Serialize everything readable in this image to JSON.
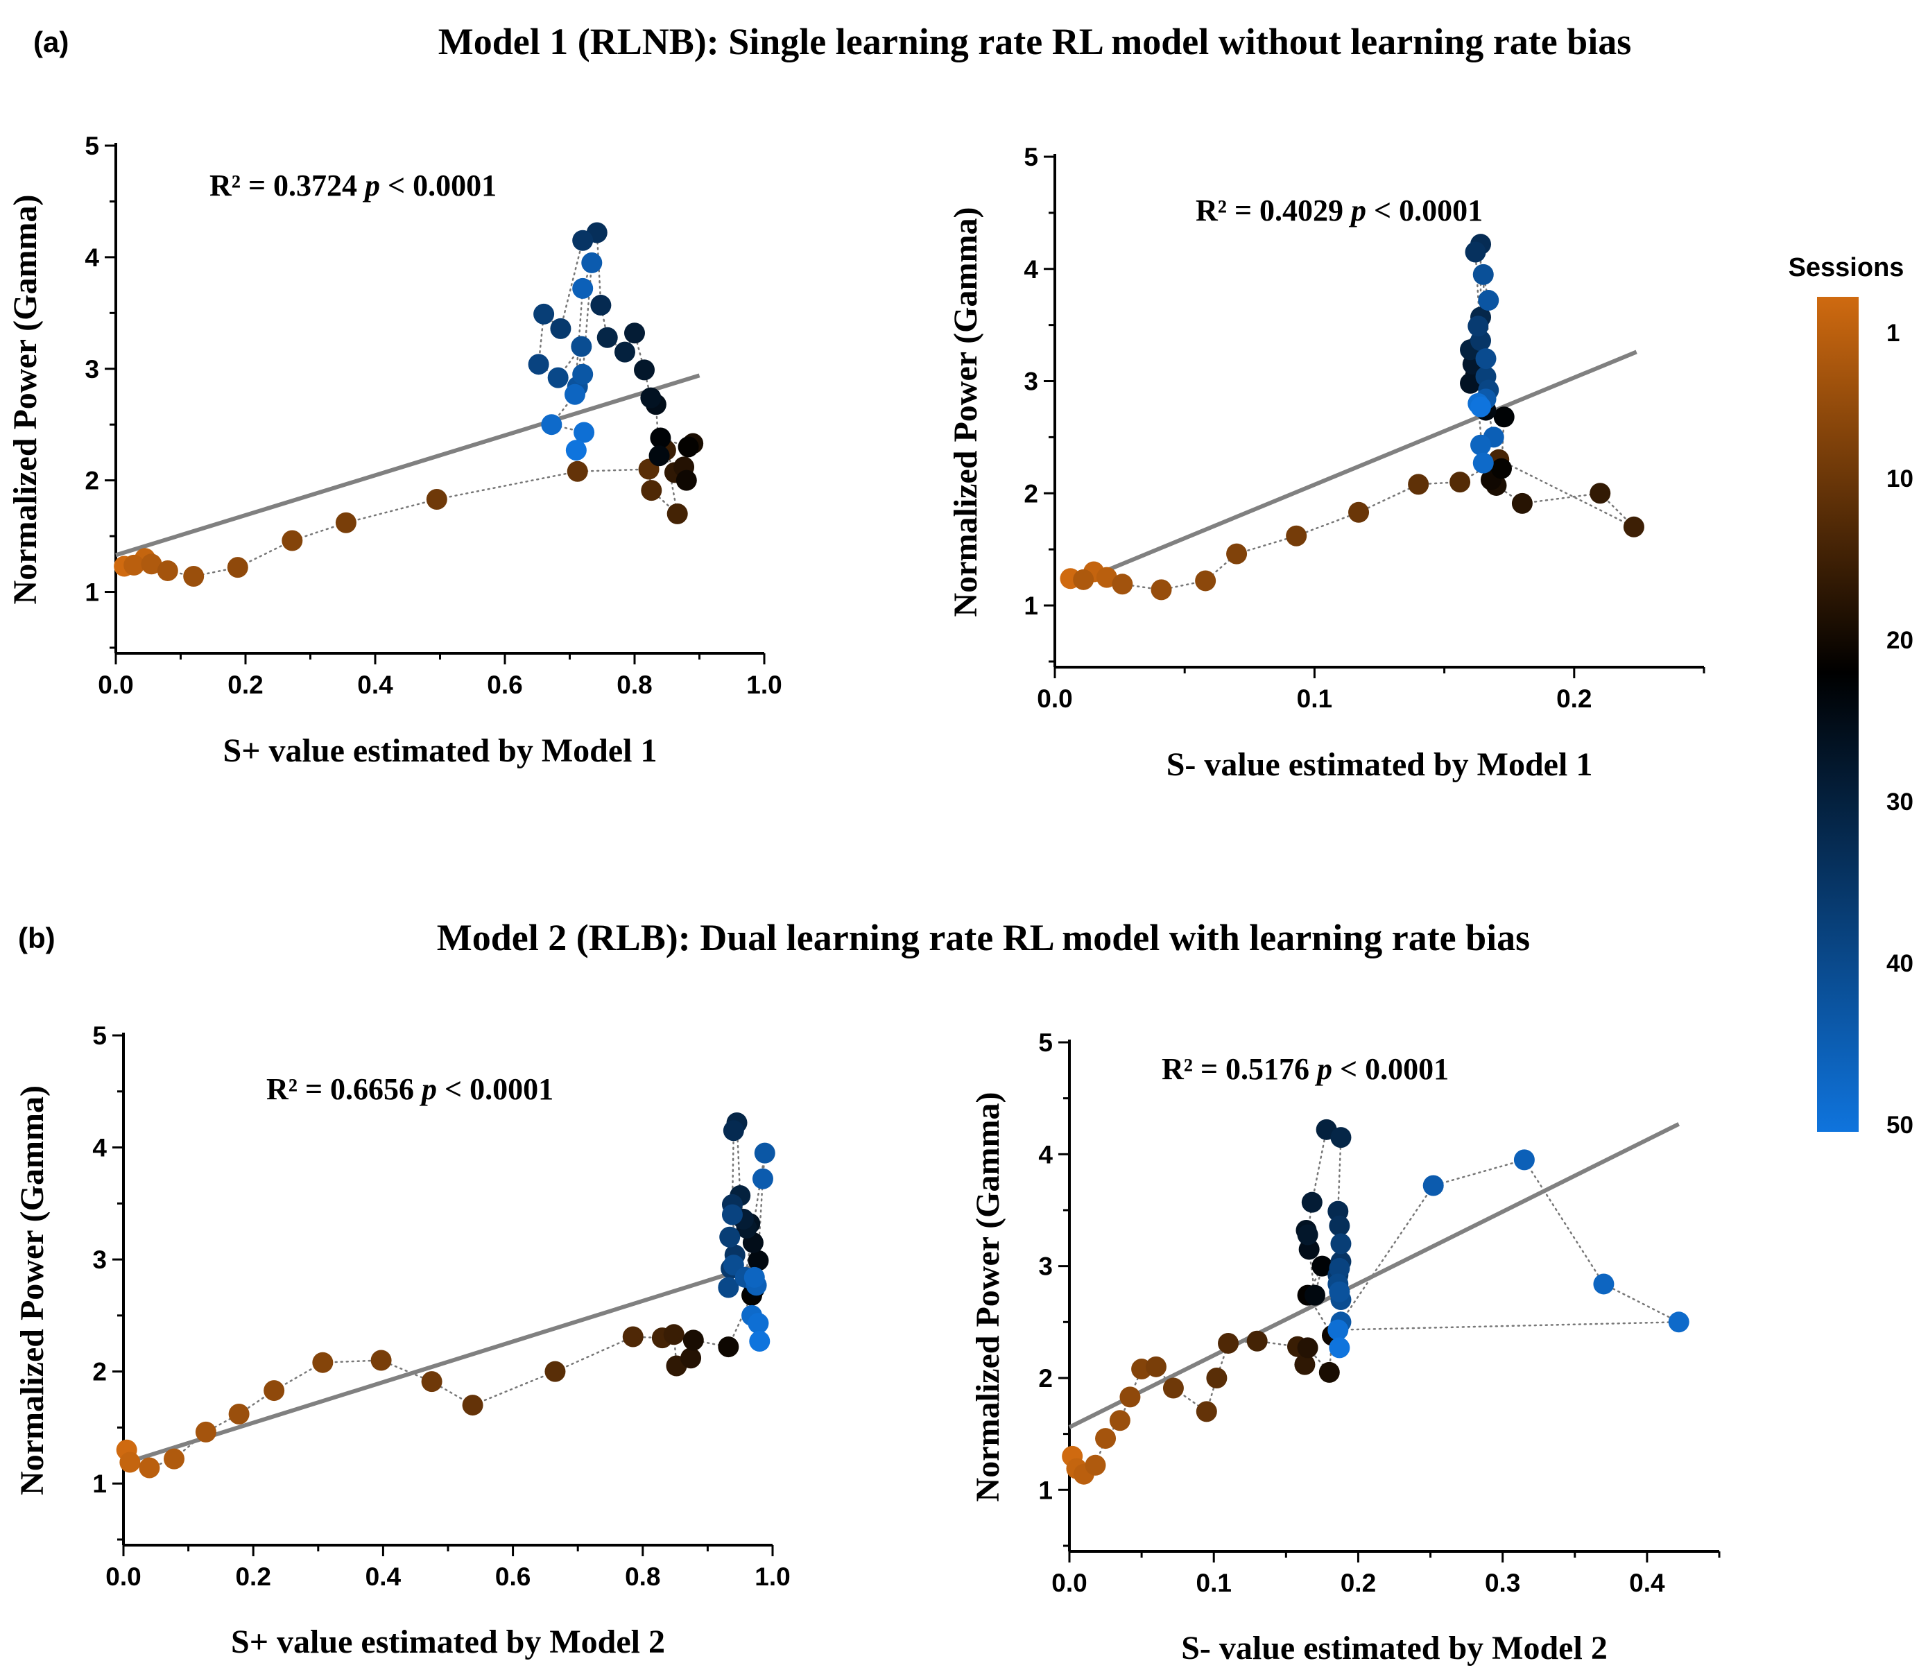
{
  "row_titles": [
    {
      "letter": "(a)",
      "title": "Model 1 (RLNB):  Single learning rate RL model without learning rate bias"
    },
    {
      "letter": "(b)",
      "title": "Model 2 (RLB):  Dual learning rate RL model with learning rate bias"
    }
  ],
  "colorbar": {
    "title": "Sessions",
    "ticks": [
      1,
      10,
      20,
      30,
      40,
      50
    ],
    "colors": [
      "#cf6a10",
      "#000000",
      "#0f74dd"
    ]
  },
  "colors": {
    "fit_line": "#808080",
    "path": "#777777",
    "axis": "#000000"
  },
  "chart_data": [
    {
      "type": "scatter",
      "ylabel": "Normalized Power (Gamma)",
      "xlabel": "S+ value estimated by Model 1",
      "xlim": [
        0,
        1.0
      ],
      "ylim": [
        0.45,
        5
      ],
      "xticks": [
        "0.0",
        "0.2",
        "0.4",
        "0.6",
        "0.8",
        "1.0"
      ],
      "xtick_values": [
        0,
        0.2,
        0.4,
        0.6,
        0.8,
        1.0
      ],
      "yticks": [
        "1",
        "2",
        "3",
        "4",
        "5"
      ],
      "ytick_values": [
        1,
        2,
        3,
        4,
        5
      ],
      "r2_text": "R² = 0.3724",
      "p_label": "p",
      "p_text": "< 0.0001",
      "fit": {
        "x0": 0.0,
        "y0": 1.33,
        "x1": 0.9,
        "y1": 2.94
      },
      "x": [
        0.013,
        0.045,
        0.028,
        0.055,
        0.08,
        0.12,
        0.188,
        0.272,
        0.355,
        0.495,
        0.712,
        0.822,
        0.826,
        0.866,
        0.848,
        0.862,
        0.876,
        0.89,
        0.88,
        0.883,
        0.84,
        0.838,
        0.833,
        0.825,
        0.815,
        0.8,
        0.785,
        0.758,
        0.748,
        0.742,
        0.72,
        0.686,
        0.66,
        0.652,
        0.682,
        0.718,
        0.712,
        0.72,
        0.734,
        0.72,
        0.708,
        0.672,
        0.722,
        0.71
      ],
      "y": [
        1.23,
        1.3,
        1.24,
        1.25,
        1.19,
        1.14,
        1.22,
        1.46,
        1.62,
        1.83,
        2.08,
        2.1,
        1.91,
        1.7,
        2.27,
        2.07,
        2.12,
        2.33,
        2.0,
        2.3,
        2.38,
        2.22,
        2.68,
        2.74,
        2.99,
        3.32,
        3.15,
        3.28,
        3.57,
        4.22,
        4.15,
        3.36,
        3.49,
        3.04,
        2.92,
        3.2,
        2.84,
        2.95,
        3.95,
        3.72,
        2.77,
        2.5,
        2.43,
        2.27
      ]
    },
    {
      "type": "scatter",
      "ylabel": "Normalized Power (Gamma)",
      "xlabel": "S- value estimated by Model 1",
      "xlim": [
        0,
        0.25
      ],
      "ylim": [
        0.45,
        5
      ],
      "xticks": [
        "0.0",
        "0.1",
        "0.2"
      ],
      "xtick_values": [
        0,
        0.1,
        0.2
      ],
      "yticks": [
        "1",
        "2",
        "3",
        "4",
        "5"
      ],
      "ytick_values": [
        1,
        2,
        3,
        4,
        5
      ],
      "r2_text": "R² = 0.4029",
      "p_label": "p",
      "p_text": "< 0.0001",
      "fit": {
        "x0": 0.005,
        "y0": 1.17,
        "x1": 0.224,
        "y1": 3.26
      },
      "x": [
        0.006,
        0.015,
        0.02,
        0.011,
        0.026,
        0.041,
        0.058,
        0.07,
        0.093,
        0.117,
        0.14,
        0.156,
        0.171,
        0.223,
        0.21,
        0.18,
        0.17,
        0.168,
        0.172,
        0.173,
        0.166,
        0.162,
        0.16,
        0.161,
        0.163,
        0.16,
        0.164,
        0.164,
        0.162,
        0.164,
        0.163,
        0.166,
        0.167,
        0.166,
        0.165,
        0.167,
        0.166,
        0.169,
        0.164,
        0.165,
        0.163,
        0.164
      ],
      "y": [
        1.24,
        1.3,
        1.25,
        1.23,
        1.19,
        1.14,
        1.22,
        1.46,
        1.62,
        1.83,
        2.08,
        2.1,
        2.3,
        1.7,
        2.0,
        1.91,
        2.07,
        2.12,
        2.22,
        2.68,
        2.74,
        3.05,
        2.98,
        3.15,
        3.32,
        3.28,
        3.57,
        4.22,
        4.15,
        3.36,
        3.49,
        3.04,
        2.92,
        3.2,
        3.95,
        3.72,
        2.84,
        2.5,
        2.43,
        2.27,
        2.8,
        2.77
      ]
    },
    {
      "type": "scatter",
      "ylabel": "Normalized Power (Gamma)",
      "xlabel": "S+ value estimated by Model 2",
      "xlim": [
        0,
        1.0
      ],
      "ylim": [
        0.45,
        5
      ],
      "xticks": [
        "0.0",
        "0.2",
        "0.4",
        "0.6",
        "0.8",
        "1.0"
      ],
      "xtick_values": [
        0,
        0.2,
        0.4,
        0.6,
        0.8,
        1.0
      ],
      "yticks": [
        "1",
        "2",
        "3",
        "4",
        "5"
      ],
      "ytick_values": [
        1,
        2,
        3,
        4,
        5
      ],
      "r2_text": "R² = 0.6656",
      "p_label": "p",
      "p_text": "< 0.0001",
      "fit": {
        "x0": 0.0,
        "y0": 1.18,
        "x1": 0.982,
        "y1": 2.96
      },
      "x": [
        0.005,
        0.01,
        0.04,
        0.078,
        0.127,
        0.178,
        0.232,
        0.307,
        0.397,
        0.475,
        0.538,
        0.665,
        0.785,
        0.83,
        0.848,
        0.852,
        0.874,
        0.878,
        0.932,
        0.968,
        0.972,
        0.978,
        0.97,
        0.965,
        0.96,
        0.955,
        0.95,
        0.945,
        0.94,
        0.938,
        0.942,
        0.936,
        0.934,
        0.938,
        0.932,
        0.94,
        0.958,
        0.988,
        0.985,
        0.975,
        0.972,
        0.968,
        0.978,
        0.98
      ],
      "y": [
        1.3,
        1.19,
        1.14,
        1.22,
        1.46,
        1.62,
        1.83,
        2.08,
        2.1,
        1.91,
        1.7,
        2.0,
        2.31,
        2.3,
        2.33,
        2.05,
        2.12,
        2.28,
        2.22,
        2.68,
        2.74,
        2.99,
        3.15,
        3.32,
        3.28,
        3.36,
        3.57,
        4.22,
        4.15,
        3.49,
        3.04,
        2.92,
        3.2,
        3.4,
        2.75,
        2.95,
        2.84,
        3.95,
        3.72,
        2.77,
        2.84,
        2.5,
        2.43,
        2.27
      ]
    },
    {
      "type": "scatter",
      "ylabel": "Normalized Power (Gamma)",
      "xlabel": "S- value estimated by Model 2",
      "xlim": [
        0,
        0.45
      ],
      "ylim": [
        0.45,
        5
      ],
      "xticks": [
        "0.0",
        "0.1",
        "0.2",
        "0.3",
        "0.4"
      ],
      "xtick_values": [
        0,
        0.1,
        0.2,
        0.3,
        0.4
      ],
      "yticks": [
        "1",
        "2",
        "3",
        "4",
        "5"
      ],
      "ytick_values": [
        1,
        2,
        3,
        4,
        5
      ],
      "r2_text": "R² = 0.5176",
      "p_label": "p",
      "p_text": "< 0.0001",
      "fit": {
        "x0": 0.0,
        "y0": 1.56,
        "x1": 0.422,
        "y1": 4.27
      },
      "x": [
        0.002,
        0.005,
        0.01,
        0.018,
        0.025,
        0.035,
        0.042,
        0.05,
        0.06,
        0.072,
        0.095,
        0.102,
        0.11,
        0.13,
        0.158,
        0.163,
        0.165,
        0.18,
        0.182,
        0.165,
        0.175,
        0.17,
        0.166,
        0.164,
        0.165,
        0.168,
        0.178,
        0.188,
        0.186,
        0.187,
        0.188,
        0.186,
        0.188,
        0.187,
        0.186,
        0.188,
        0.187,
        0.188,
        0.252,
        0.315,
        0.37,
        0.422,
        0.186,
        0.187
      ],
      "y": [
        1.3,
        1.19,
        1.14,
        1.22,
        1.46,
        1.62,
        1.83,
        2.08,
        2.1,
        1.91,
        1.7,
        2.0,
        2.31,
        2.33,
        2.28,
        2.12,
        2.27,
        2.05,
        2.38,
        2.74,
        3.0,
        2.74,
        3.15,
        3.32,
        3.28,
        3.57,
        4.22,
        4.15,
        3.49,
        3.36,
        3.04,
        2.92,
        3.2,
        2.98,
        2.84,
        2.7,
        2.77,
        2.5,
        3.72,
        3.95,
        2.84,
        2.5,
        2.43,
        2.27
      ]
    }
  ]
}
